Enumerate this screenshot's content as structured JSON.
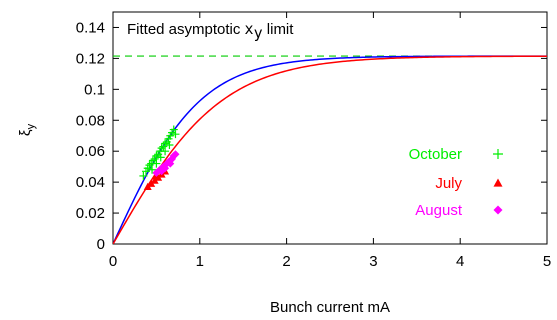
{
  "chart_data": {
    "type": "scatter",
    "xlabel": "Bunch current mA",
    "ylabel_main": "ξ",
    "ylabel_sub": "y",
    "xlim": [
      0,
      5
    ],
    "ylim": [
      0,
      0.15
    ],
    "x_ticks": [
      "0",
      "1",
      "2",
      "3",
      "4",
      "5"
    ],
    "y_ticks": [
      "0",
      "0.02",
      "0.04",
      "0.06",
      "0.08",
      "0.1",
      "0.12",
      "0.14"
    ],
    "grid": false,
    "annotation": {
      "prefix": "Fitted asymptotic ",
      "var": "x",
      "sub": "y",
      "suffix": " limit"
    },
    "asymptote": {
      "y": 0.1215,
      "color": "#00cc00",
      "style": "dashed"
    },
    "fit_curves": [
      {
        "color": "#0000ff",
        "limit": 0.1215,
        "rate": 1.0
      },
      {
        "color": "#ff0000",
        "limit": 0.1215,
        "rate": 0.8
      }
    ],
    "series": [
      {
        "name": "October",
        "marker": "plus",
        "color": "#00ee00",
        "points": [
          [
            0.35,
            0.044
          ],
          [
            0.38,
            0.047
          ],
          [
            0.4,
            0.049
          ],
          [
            0.42,
            0.051
          ],
          [
            0.44,
            0.052
          ],
          [
            0.46,
            0.054
          ],
          [
            0.48,
            0.055
          ],
          [
            0.5,
            0.057
          ],
          [
            0.52,
            0.058
          ],
          [
            0.54,
            0.06
          ],
          [
            0.56,
            0.062
          ],
          [
            0.58,
            0.063
          ],
          [
            0.6,
            0.065
          ],
          [
            0.62,
            0.066
          ],
          [
            0.64,
            0.068
          ],
          [
            0.66,
            0.07
          ],
          [
            0.68,
            0.072
          ],
          [
            0.7,
            0.074
          ],
          [
            0.72,
            0.071
          ],
          [
            0.45,
            0.048
          ],
          [
            0.55,
            0.056
          ],
          [
            0.65,
            0.064
          ],
          [
            0.5,
            0.052
          ],
          [
            0.6,
            0.06
          ]
        ]
      },
      {
        "name": "July",
        "marker": "triangle",
        "color": "#ff0000",
        "points": [
          [
            0.4,
            0.037
          ],
          [
            0.44,
            0.039
          ],
          [
            0.48,
            0.041
          ],
          [
            0.52,
            0.043
          ],
          [
            0.56,
            0.045
          ],
          [
            0.6,
            0.047
          ],
          [
            0.5,
            0.044
          ]
        ]
      },
      {
        "name": "August",
        "marker": "diamond",
        "color": "#ff00ff",
        "points": [
          [
            0.5,
            0.046
          ],
          [
            0.54,
            0.048
          ],
          [
            0.58,
            0.05
          ],
          [
            0.62,
            0.052
          ],
          [
            0.64,
            0.053
          ],
          [
            0.66,
            0.054
          ],
          [
            0.68,
            0.055
          ],
          [
            0.7,
            0.057
          ],
          [
            0.72,
            0.058
          ],
          [
            0.6,
            0.049
          ],
          [
            0.66,
            0.052
          ],
          [
            0.56,
            0.047
          ]
        ]
      }
    ],
    "legend_position": "middle-right"
  }
}
